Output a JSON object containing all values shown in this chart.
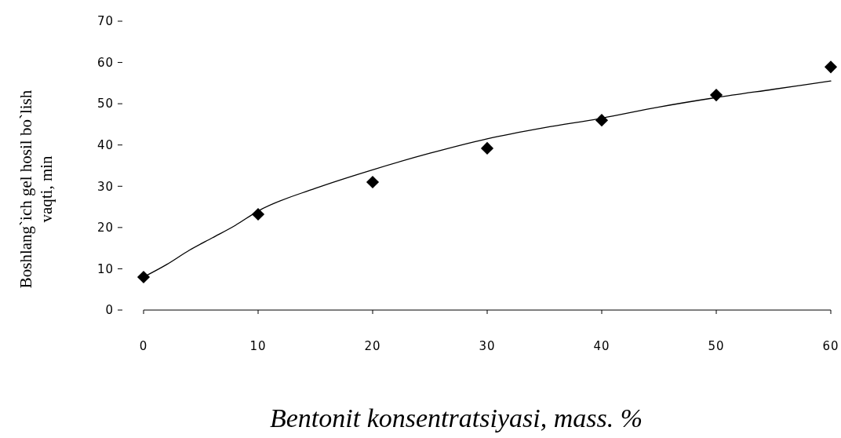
{
  "chart_data": {
    "type": "scatter",
    "xlabel": "Bentonit konsentratsiyasi, mass. %",
    "ylabel": "Boshlang`ich gel hosil bo`lish vaqti, min",
    "xlim": [
      0,
      60
    ],
    "xticks": [
      0,
      10,
      20,
      30,
      40,
      50,
      60
    ],
    "ylim": [
      0,
      70
    ],
    "yticks": [
      0,
      10,
      20,
      30,
      40,
      50,
      60,
      70
    ],
    "grid": false,
    "series": [
      {
        "color": "#000000",
        "marker": "diamond",
        "x": [
          0,
          10,
          20,
          30,
          40,
          50,
          60
        ],
        "values": [
          8,
          23.2,
          31,
          39.2,
          46,
          52.1,
          58.9
        ]
      },
      {
        "type": "line",
        "color": "#000000",
        "marker": "none",
        "line_style": "solid",
        "x": [
          0,
          2,
          4,
          6,
          8,
          10,
          15,
          20,
          25,
          30,
          35,
          40,
          45,
          50,
          55,
          60
        ],
        "values": [
          8,
          11,
          14.5,
          17.5,
          20.5,
          24,
          29.5,
          34,
          38,
          41.5,
          44.2,
          46.5,
          49.2,
          51.5,
          53.5,
          55.5
        ]
      }
    ]
  }
}
